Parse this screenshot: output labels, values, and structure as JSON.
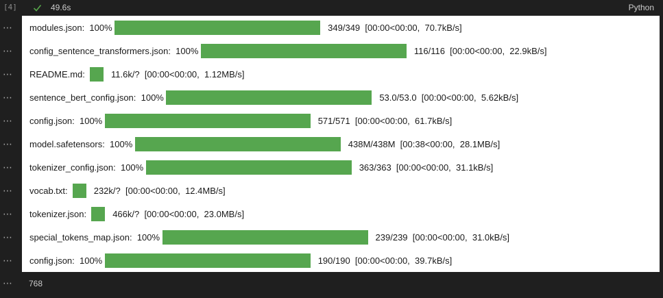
{
  "cell": {
    "execution_count": "[4]",
    "status_icon": "check-icon",
    "duration": "49.6s",
    "language": "Python",
    "final_output": "768"
  },
  "colors": {
    "progress_fill": "#56a64f",
    "check": "#57a64a"
  },
  "progress_bars": [
    {
      "label": "modules.json:  100%",
      "fraction": 1.0,
      "full_bar": true,
      "stats": "349/349  [00:00<00:00,  70.7kB/s]"
    },
    {
      "label": "config_sentence_transformers.json:  100%",
      "fraction": 1.0,
      "full_bar": true,
      "stats": "116/116  [00:00<00:00,  22.9kB/s]"
    },
    {
      "label": "README.md:",
      "fraction": 1.0,
      "full_bar": false,
      "stats": "11.6k/?  [00:00<00:00,  1.12MB/s]"
    },
    {
      "label": "sentence_bert_config.json:  100%",
      "fraction": 1.0,
      "full_bar": true,
      "stats": "53.0/53.0  [00:00<00:00,  5.62kB/s]"
    },
    {
      "label": "config.json:  100%",
      "fraction": 1.0,
      "full_bar": true,
      "stats": "571/571  [00:00<00:00,  61.7kB/s]"
    },
    {
      "label": "model.safetensors:  100%",
      "fraction": 1.0,
      "full_bar": true,
      "stats": "438M/438M  [00:38<00:00,  28.1MB/s]"
    },
    {
      "label": "tokenizer_config.json:  100%",
      "fraction": 1.0,
      "full_bar": true,
      "stats": "363/363  [00:00<00:00,  31.1kB/s]"
    },
    {
      "label": "vocab.txt:",
      "fraction": 1.0,
      "full_bar": false,
      "stats": "232k/?  [00:00<00:00,  12.4MB/s]"
    },
    {
      "label": "tokenizer.json:",
      "fraction": 1.0,
      "full_bar": false,
      "stats": "466k/?  [00:00<00:00,  23.0MB/s]"
    },
    {
      "label": "special_tokens_map.json:  100%",
      "fraction": 1.0,
      "full_bar": true,
      "stats": "239/239  [00:00<00:00,  31.0kB/s]"
    },
    {
      "label": "config.json:  100%",
      "fraction": 1.0,
      "full_bar": true,
      "stats": "190/190  [00:00<00:00,  39.7kB/s]"
    }
  ]
}
